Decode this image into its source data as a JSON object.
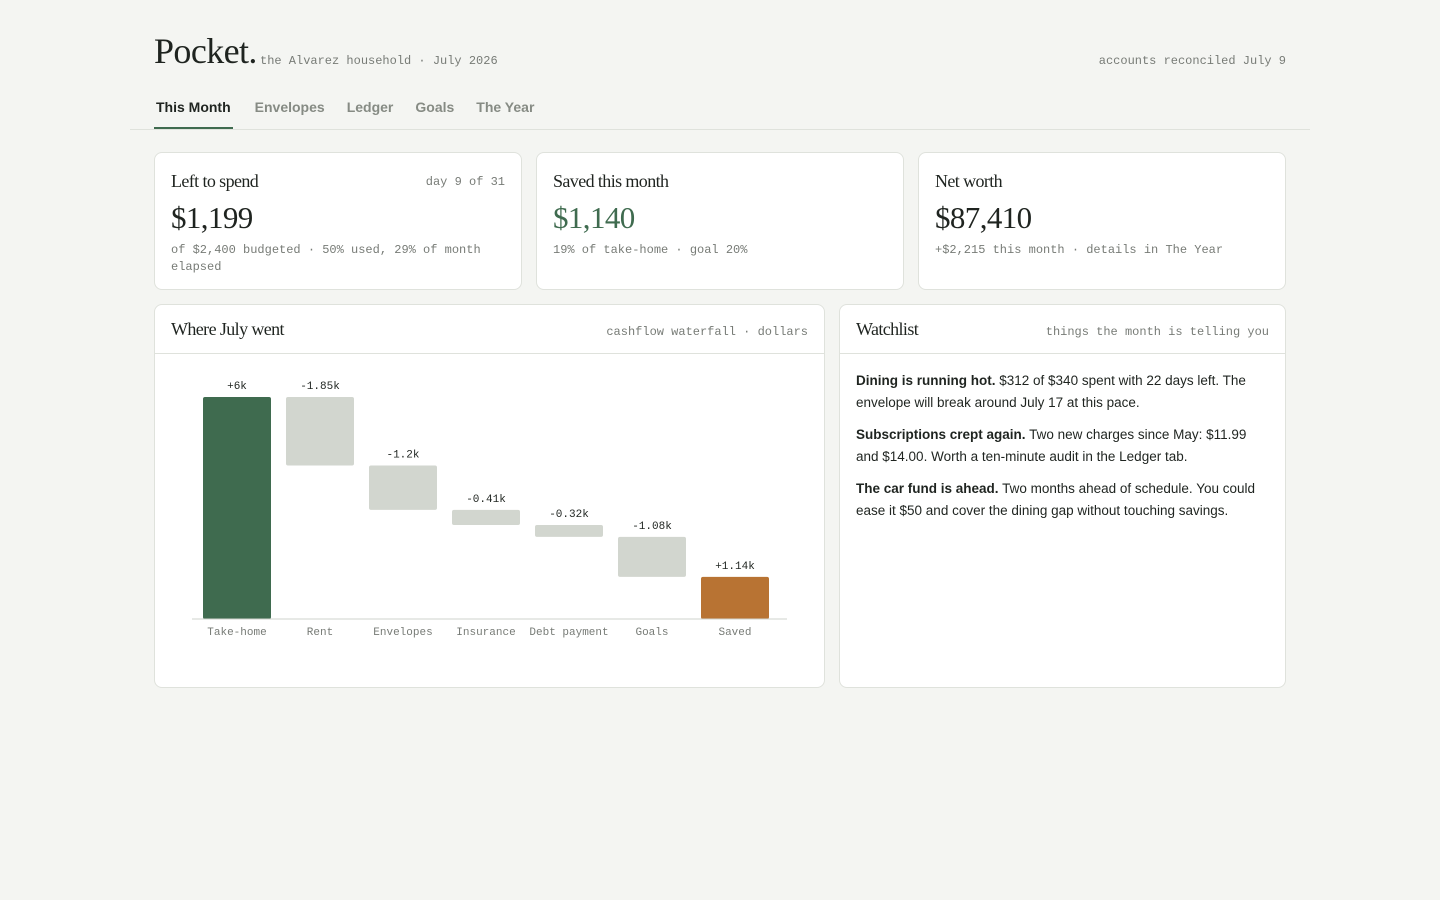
{
  "header": {
    "brand": "Pocket.",
    "subtitle": "the Alvarez household · July 2026",
    "status": "accounts reconciled July 9"
  },
  "tabs": [
    "This Month",
    "Envelopes",
    "Ledger",
    "Goals",
    "The Year"
  ],
  "cards": [
    {
      "title": "Left to spend",
      "note": "day 9 of 31",
      "value": "$1,199",
      "detail": "of $2,400 budgeted · 50% used, 29% of month elapsed"
    },
    {
      "title": "Saved this month",
      "value": "$1,140",
      "detail": "19% of take-home · goal 20%"
    },
    {
      "title": "Net worth",
      "value": "$87,410",
      "detail": "+$2,215 this month · details in The Year"
    }
  ],
  "chart_data": {
    "type": "waterfall",
    "title": "Where July went",
    "subtitle": "cashflow waterfall · dollars",
    "categories": [
      "Take-home",
      "Rent",
      "Envelopes",
      "Insurance",
      "Debt payment",
      "Goals",
      "Saved"
    ],
    "values": [
      6000,
      -1850,
      -1200,
      -410,
      -320,
      -1080,
      1140
    ],
    "value_labels": [
      "+6k",
      "-1.85k",
      "-1.2k",
      "-0.41k",
      "-0.32k",
      "-1.08k",
      "+1.14k"
    ],
    "measures": [
      "total",
      "relative",
      "relative",
      "relative",
      "relative",
      "relative",
      "total"
    ],
    "colors": [
      "#3f6b4f",
      "#d2d6cf",
      "#d2d6cf",
      "#d2d6cf",
      "#d2d6cf",
      "#d2d6cf",
      "#b87333"
    ]
  },
  "watchlist": {
    "title": "Watchlist",
    "subtitle": "things the month is telling you",
    "items": [
      {
        "lead": "Dining is running hot.",
        "text": "$312 of $340 spent with 22 days left. The envelope will break around July 17 at this pace."
      },
      {
        "lead": "Subscriptions crept again.",
        "text": "Two new charges since May: $11.99 and $14.00. Worth a ten-minute audit in the Ledger tab."
      },
      {
        "lead": "The car fund is ahead.",
        "text": "Two months ahead of schedule. You could ease it $50 and cover the dining gap without touching savings."
      }
    ]
  }
}
